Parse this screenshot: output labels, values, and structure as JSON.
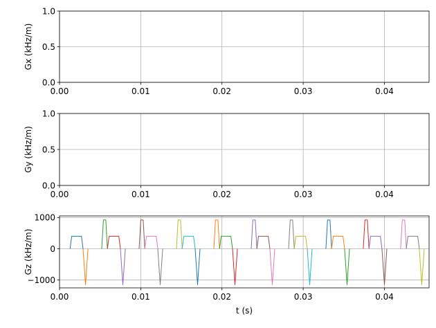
{
  "chart_data": [
    {
      "type": "line",
      "ylabel": "Gx (kHz/m)",
      "xlabel": "",
      "xlim": [
        0,
        0.0455
      ],
      "ylim": [
        0,
        1
      ],
      "xticks": [
        "0.00",
        "0.01",
        "0.02",
        "0.03",
        "0.04"
      ],
      "yticks": [
        "0.0",
        "0.5",
        "1.0"
      ],
      "grid": true,
      "series": []
    },
    {
      "type": "line",
      "ylabel": "Gy (kHz/m)",
      "xlabel": "",
      "xlim": [
        0,
        0.0455
      ],
      "ylim": [
        0,
        1
      ],
      "xticks": [
        "0.00",
        "0.01",
        "0.02",
        "0.03",
        "0.04"
      ],
      "yticks": [
        "0.0",
        "0.5",
        "1.0"
      ],
      "grid": true,
      "series": []
    },
    {
      "type": "line",
      "ylabel": "Gz (kHz/m)",
      "xlabel": "t (s)",
      "xlim": [
        0,
        0.0455
      ],
      "ylim": [
        -1250,
        1050
      ],
      "xticks": [
        "0.00",
        "0.01",
        "0.02",
        "0.03",
        "0.04"
      ],
      "yticks": [
        "−1000",
        "0",
        "1000"
      ],
      "grid": true,
      "colors": [
        "#1f77b4",
        "#ff7f0e",
        "#2ca02c",
        "#d62728",
        "#9467bd",
        "#8c564b",
        "#e377c2",
        "#7f7f7f",
        "#bcbd22",
        "#17becf"
      ],
      "series": [
        {
          "x": [
            0.0013,
            0.0015,
            0.0027,
            0.0029
          ],
          "y": [
            0,
            400,
            400,
            0
          ]
        },
        {
          "x": [
            0.0029,
            0.0032,
            0.0035
          ],
          "y": [
            0,
            -1150,
            0
          ]
        },
        {
          "x": [
            0.0052,
            0.0054,
            0.0057,
            0.0059
          ],
          "y": [
            0,
            920,
            920,
            0
          ]
        },
        {
          "x": [
            0.0059,
            0.0061,
            0.0073,
            0.0075
          ],
          "y": [
            0,
            400,
            400,
            0
          ]
        },
        {
          "x": [
            0.0075,
            0.0078,
            0.0081
          ],
          "y": [
            0,
            -1150,
            0
          ]
        },
        {
          "x": [
            0.0098,
            0.01,
            0.0103,
            0.0105
          ],
          "y": [
            0,
            920,
            920,
            0
          ]
        },
        {
          "x": [
            0.0105,
            0.0107,
            0.0119,
            0.0121
          ],
          "y": [
            0,
            400,
            400,
            0
          ]
        },
        {
          "x": [
            0.0121,
            0.0124,
            0.0127
          ],
          "y": [
            0,
            -1150,
            0
          ]
        },
        {
          "x": [
            0.0144,
            0.0146,
            0.0149,
            0.0151
          ],
          "y": [
            0,
            920,
            920,
            0
          ]
        },
        {
          "x": [
            0.0151,
            0.0153,
            0.0165,
            0.0167
          ],
          "y": [
            0,
            400,
            400,
            0
          ]
        },
        {
          "x": [
            0.0167,
            0.017,
            0.0173
          ],
          "y": [
            0,
            -1150,
            0
          ]
        },
        {
          "x": [
            0.019,
            0.0192,
            0.0195,
            0.0197
          ],
          "y": [
            0,
            920,
            920,
            0
          ]
        },
        {
          "x": [
            0.0197,
            0.0199,
            0.0211,
            0.0213
          ],
          "y": [
            0,
            400,
            400,
            0
          ]
        },
        {
          "x": [
            0.0213,
            0.0216,
            0.0219
          ],
          "y": [
            0,
            -1150,
            0
          ]
        },
        {
          "x": [
            0.0236,
            0.0238,
            0.0241,
            0.0243
          ],
          "y": [
            0,
            920,
            920,
            0
          ]
        },
        {
          "x": [
            0.0243,
            0.0245,
            0.0257,
            0.0259
          ],
          "y": [
            0,
            400,
            400,
            0
          ]
        },
        {
          "x": [
            0.0259,
            0.0262,
            0.0265
          ],
          "y": [
            0,
            -1150,
            0
          ]
        },
        {
          "x": [
            0.0282,
            0.0284,
            0.0287,
            0.0289
          ],
          "y": [
            0,
            920,
            920,
            0
          ]
        },
        {
          "x": [
            0.0289,
            0.0291,
            0.0303,
            0.0305
          ],
          "y": [
            0,
            400,
            400,
            0
          ]
        },
        {
          "x": [
            0.0305,
            0.0308,
            0.0311
          ],
          "y": [
            0,
            -1150,
            0
          ]
        },
        {
          "x": [
            0.0328,
            0.033,
            0.0333,
            0.0335
          ],
          "y": [
            0,
            920,
            920,
            0
          ]
        },
        {
          "x": [
            0.0335,
            0.0337,
            0.0349,
            0.0351
          ],
          "y": [
            0,
            400,
            400,
            0
          ]
        },
        {
          "x": [
            0.0351,
            0.0354,
            0.0357
          ],
          "y": [
            0,
            -1150,
            0
          ]
        },
        {
          "x": [
            0.0374,
            0.0376,
            0.0379,
            0.0381
          ],
          "y": [
            0,
            920,
            920,
            0
          ]
        },
        {
          "x": [
            0.0381,
            0.0383,
            0.0395,
            0.0397
          ],
          "y": [
            0,
            400,
            400,
            0
          ]
        },
        {
          "x": [
            0.0397,
            0.04,
            0.0403
          ],
          "y": [
            0,
            -1150,
            0
          ]
        },
        {
          "x": [
            0.042,
            0.0422,
            0.0425,
            0.0427
          ],
          "y": [
            0,
            920,
            920,
            0
          ]
        },
        {
          "x": [
            0.0427,
            0.0429,
            0.0441,
            0.0443
          ],
          "y": [
            0,
            400,
            400,
            0
          ]
        },
        {
          "x": [
            0.0443,
            0.0446,
            0.0449
          ],
          "y": [
            0,
            -1150,
            0
          ]
        }
      ]
    }
  ]
}
